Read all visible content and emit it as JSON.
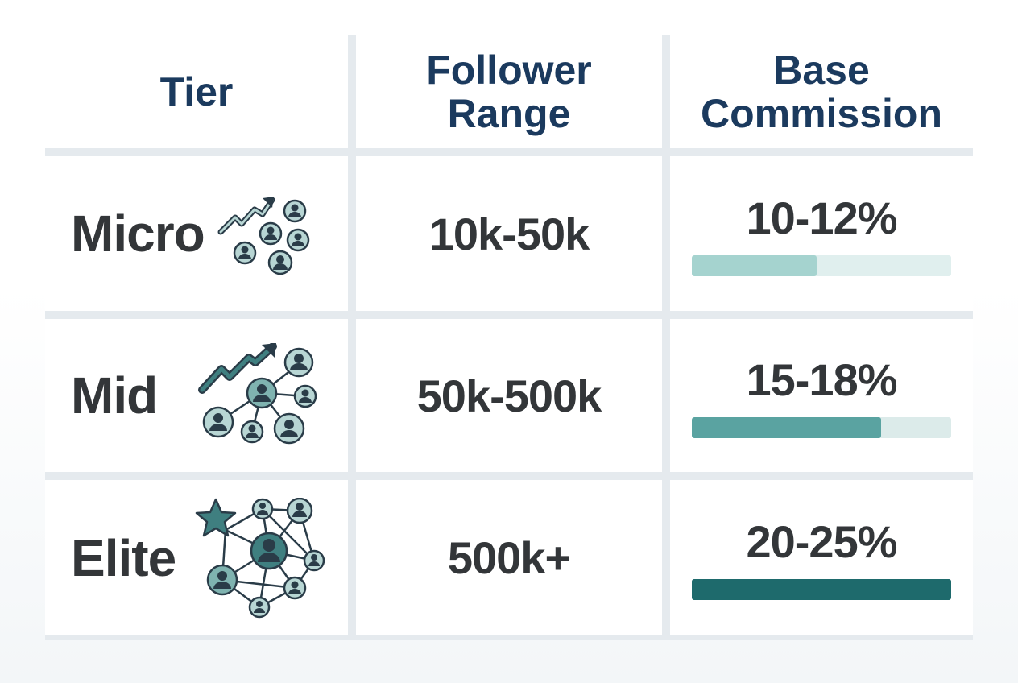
{
  "table": {
    "headers": {
      "tier": "Tier",
      "follower_range": "Follower\nRange",
      "base_commission": "Base\nCommission"
    },
    "rows": [
      {
        "tier": "Micro",
        "follower_range": "10k-50k",
        "base_commission": "10-12%",
        "bar_level": 0.48,
        "bar_color": "#a5d3cf",
        "track_color": "#e0efee",
        "icon": "growth-network-icon"
      },
      {
        "tier": "Mid",
        "follower_range": "50k-500k",
        "base_commission": "15-18%",
        "bar_level": 0.73,
        "bar_color": "#5aa3a1",
        "track_color": "#dcebea",
        "icon": "growth-network-icon"
      },
      {
        "tier": "Elite",
        "follower_range": "500k+",
        "base_commission": "20-25%",
        "bar_level": 1.0,
        "bar_color": "#1e6a6c",
        "track_color": "#1e6a6c",
        "icon": "star-network-icon"
      }
    ]
  },
  "colors": {
    "header_text": "#1b3a5e",
    "body_text": "#333639",
    "grid_line": "#e5eaee",
    "icon_stroke": "#2a3c48",
    "icon_fill_light": "#b8d6d4",
    "icon_fill_mid": "#7fb3b0",
    "icon_fill_dark": "#3f7f80"
  }
}
